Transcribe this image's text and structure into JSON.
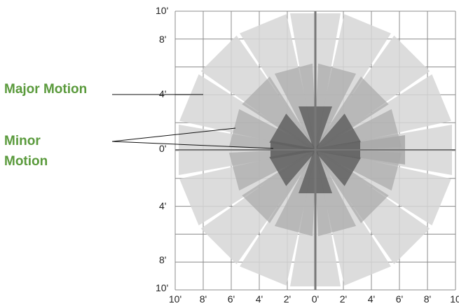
{
  "annotations": {
    "major": "Major Motion",
    "minor_line1": "Minor",
    "minor_line2": "Motion",
    "color": "#5a9a3c"
  },
  "axis_labels": {
    "left_10_top": "10'",
    "left_8_top": "8'",
    "left_4_top": "4'",
    "left_0": "0'",
    "left_4_bottom": "4'",
    "left_8_bottom": "8'",
    "left_10_bottom": "10'",
    "bottom": [
      "10'",
      "8'",
      "6'",
      "4'",
      "2'",
      "0'",
      "2'",
      "4'",
      "6'",
      "8'",
      "10"
    ]
  },
  "colors": {
    "grid": "#8c8c8c",
    "axis": "#777777",
    "major_zone": "#d6d6d6",
    "mid_zone": "#a8a8a8",
    "minor_zone": "#606060"
  },
  "coverage": {
    "range_ft": 10,
    "major_beam_angles_deg": [
      0,
      22.5,
      45,
      67.5,
      90,
      112.5,
      135,
      157.5,
      180,
      202.5,
      225,
      247.5,
      270,
      292.5,
      315,
      337.5
    ],
    "mid_beam_angles_deg": [
      0,
      30,
      60,
      90,
      120,
      150,
      180,
      210,
      240,
      270,
      300,
      330
    ],
    "minor_beam_angles_deg": [
      0,
      60,
      120,
      180,
      240,
      300
    ]
  }
}
